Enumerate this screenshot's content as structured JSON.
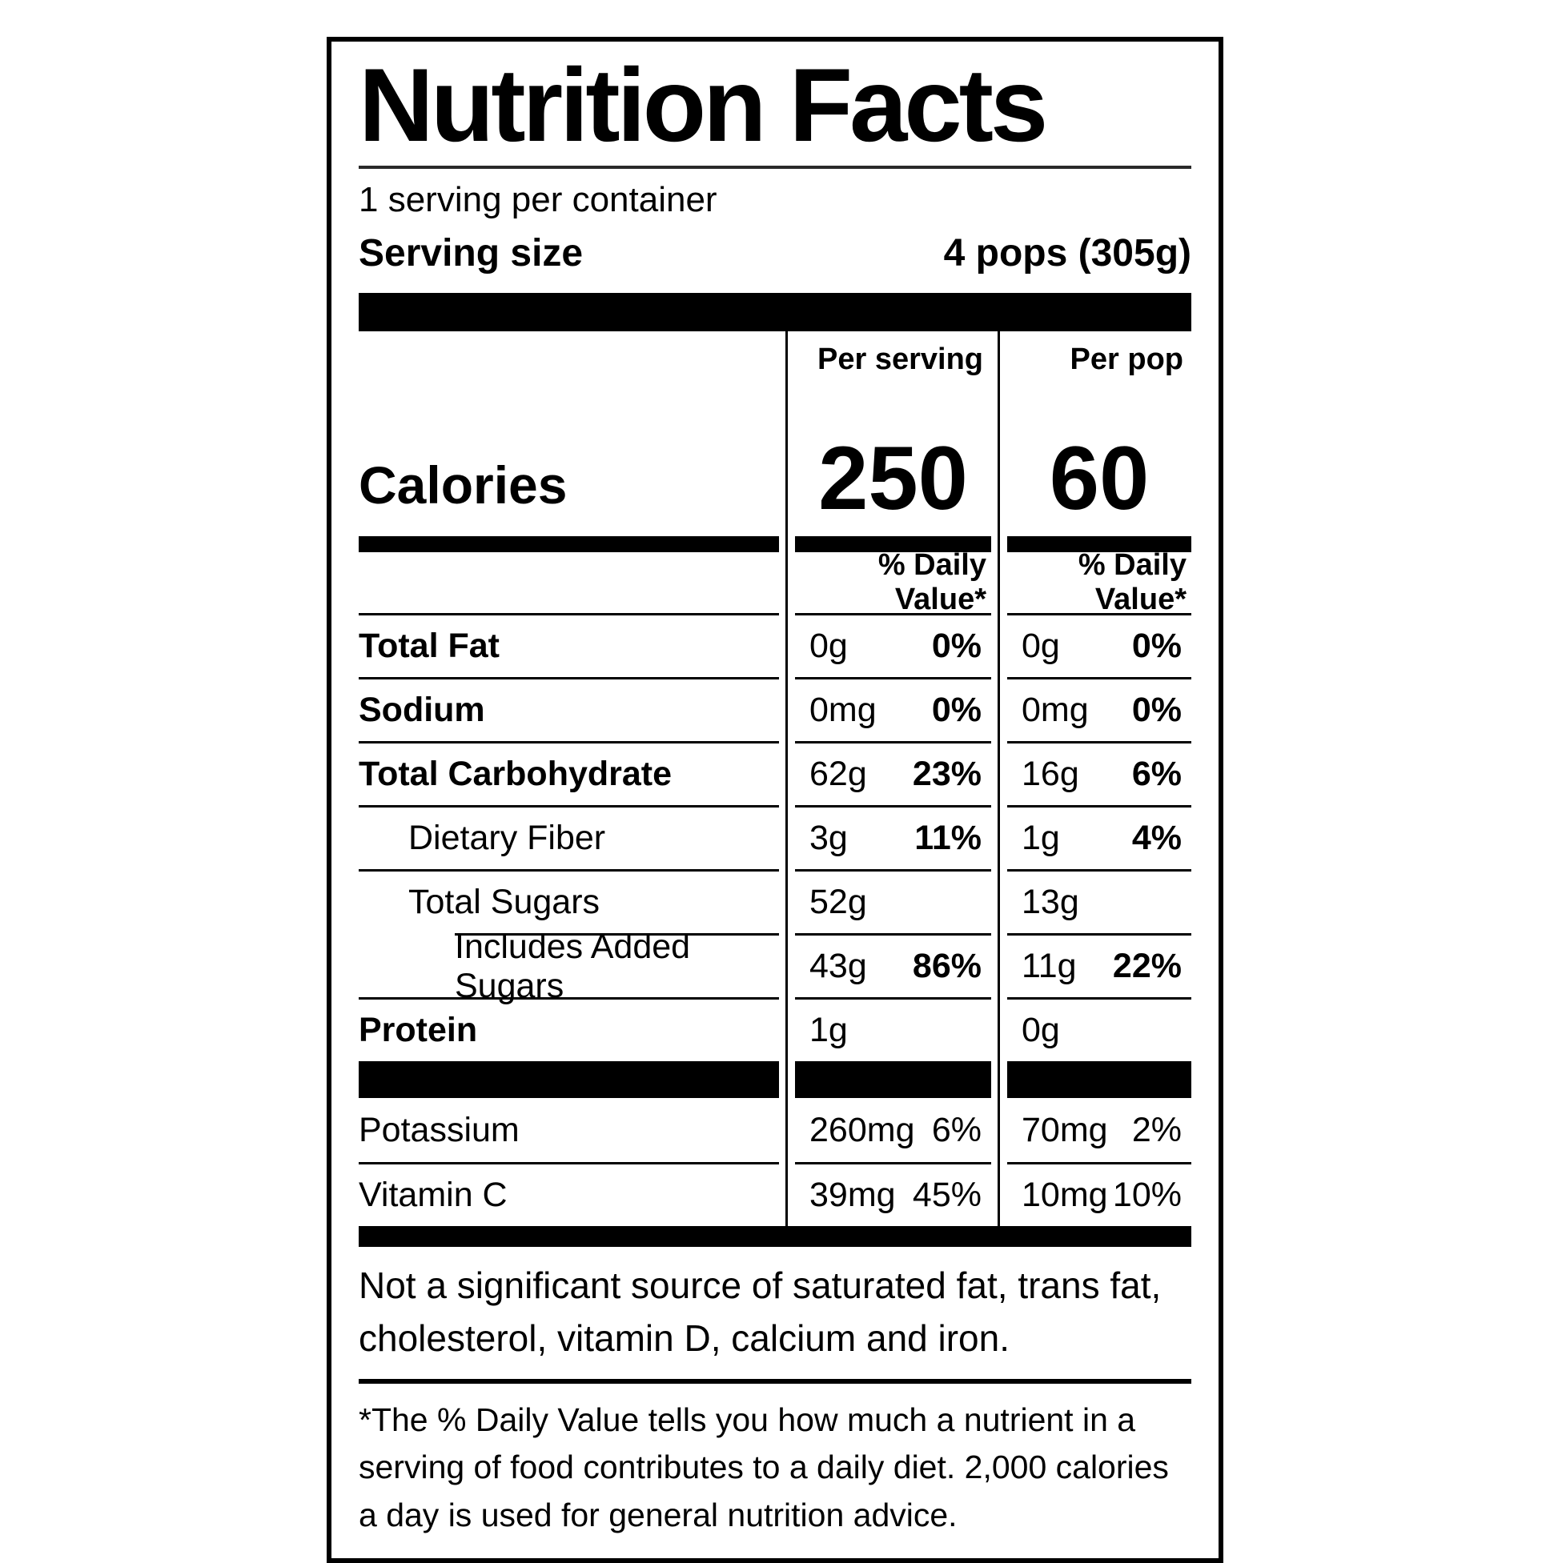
{
  "label": {
    "title": "Nutrition Facts",
    "servings_per_container": "1 serving per container",
    "serving_size_label": "Serving size",
    "serving_size_value": "4 pops (305g)",
    "column_headers": {
      "per_serving": "Per serving",
      "per_pop": "Per pop"
    },
    "calories": {
      "label": "Calories",
      "per_serving": "250",
      "per_pop": "60"
    },
    "daily_value_header": "% Daily Value*",
    "rows": [
      {
        "name": "Total Fat",
        "serving_amount": "0g",
        "serving_dv": "0%",
        "pop_amount": "0g",
        "pop_dv": "0%"
      },
      {
        "name": "Sodium",
        "serving_amount": "0mg",
        "serving_dv": "0%",
        "pop_amount": "0mg",
        "pop_dv": "0%"
      },
      {
        "name": "Total Carbohydrate",
        "serving_amount": "62g",
        "serving_dv": "23%",
        "pop_amount": "16g",
        "pop_dv": "6%"
      },
      {
        "name": "Dietary Fiber",
        "serving_amount": "3g",
        "serving_dv": "11%",
        "pop_amount": "1g",
        "pop_dv": "4%"
      },
      {
        "name": "Total Sugars",
        "serving_amount": "52g",
        "serving_dv": "",
        "pop_amount": "13g",
        "pop_dv": ""
      },
      {
        "name": "Includes Added Sugars",
        "serving_amount": "43g",
        "serving_dv": "86%",
        "pop_amount": "11g",
        "pop_dv": "22%"
      },
      {
        "name": "Protein",
        "serving_amount": "1g",
        "serving_dv": "",
        "pop_amount": "0g",
        "pop_dv": ""
      }
    ],
    "micronutrients": [
      {
        "name": "Potassium",
        "serving_amount": "260mg",
        "serving_dv": "6%",
        "pop_amount": "70mg",
        "pop_dv": "2%"
      },
      {
        "name": "Vitamin C",
        "serving_amount": "39mg",
        "serving_dv": "45%",
        "pop_amount": "10mg",
        "pop_dv": "10%"
      }
    ],
    "not_significant_note": "Not a significant source of saturated fat, trans fat, cholesterol, vitamin D, calcium and iron.",
    "footnote": "*The % Daily Value tells you how much a nutrient in a serving of food contributes to a daily diet. 2,000 calories a day is used for general nutrition advice."
  }
}
